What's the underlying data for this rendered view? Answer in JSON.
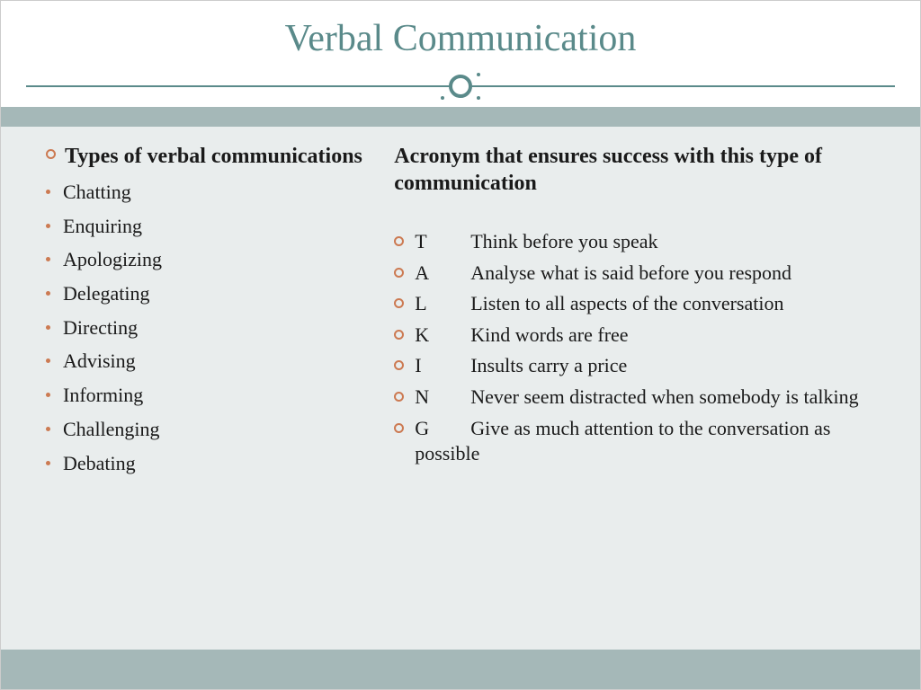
{
  "title": "Verbal Communication",
  "colors": {
    "title_color": "#5a8a8a",
    "divider_color": "#5a8a8a",
    "band_color": "#a5b8b8",
    "content_bg": "#e9eded",
    "bullet_color": "#cc7a52",
    "text_color": "#1a1a1a"
  },
  "left": {
    "heading": "Types of verbal communications",
    "items": [
      "Chatting",
      "Enquiring",
      "Apologizing",
      "Delegating",
      "Directing",
      "Advising",
      "Informing",
      "Challenging",
      "Debating"
    ]
  },
  "right": {
    "heading": "Acronym that ensures success with this type of communication",
    "items": [
      {
        "letter": "T",
        "text": "Think before you speak"
      },
      {
        "letter": "A",
        "text": "Analyse what is said before you respond"
      },
      {
        "letter": "L",
        "text": "Listen to all aspects of the conversation"
      },
      {
        "letter": "K",
        "text": "Kind words are free"
      },
      {
        "letter": "I",
        "text": "Insults carry a price"
      },
      {
        "letter": "N",
        "text": "Never seem distracted when somebody  is talking"
      },
      {
        "letter": "G",
        "text": "Give as much attention to the conversation as  possible"
      }
    ]
  }
}
